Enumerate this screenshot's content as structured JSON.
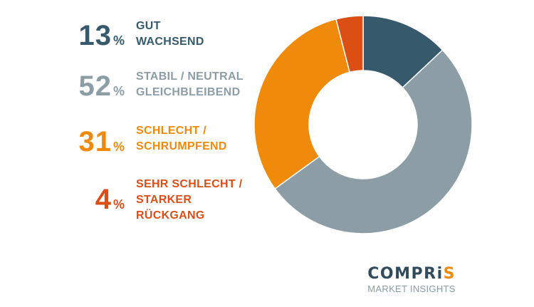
{
  "chart_data": {
    "type": "pie",
    "donut": true,
    "slices": [
      {
        "key": "gut",
        "value": 13,
        "pct_label": "13",
        "label_lines": [
          "GUT",
          "WACHSEND"
        ],
        "color": "#365a6c"
      },
      {
        "key": "stabil",
        "value": 52,
        "pct_label": "52",
        "label_lines": [
          "STABIL / NEUTRAL",
          "GLEICHBLEIBEND"
        ],
        "color": "#8c9da6"
      },
      {
        "key": "schlecht",
        "value": 31,
        "pct_label": "31",
        "label_lines": [
          "SCHLECHT /",
          "SCHRUMPFEND"
        ],
        "color": "#f08a0b"
      },
      {
        "key": "sehr_schlecht",
        "value": 4,
        "pct_label": "4",
        "label_lines": [
          "SEHR SCHLECHT /",
          "STARKER",
          "RÜCKGANG"
        ],
        "color": "#dc4f14"
      }
    ],
    "start_angle_deg": 0,
    "direction": "clockwise"
  },
  "legend": {
    "percent_symbol": "%"
  },
  "brand": {
    "name_main": "COMPRi",
    "name_accent": "S",
    "tagline": "MARKET INSIGHTS"
  }
}
